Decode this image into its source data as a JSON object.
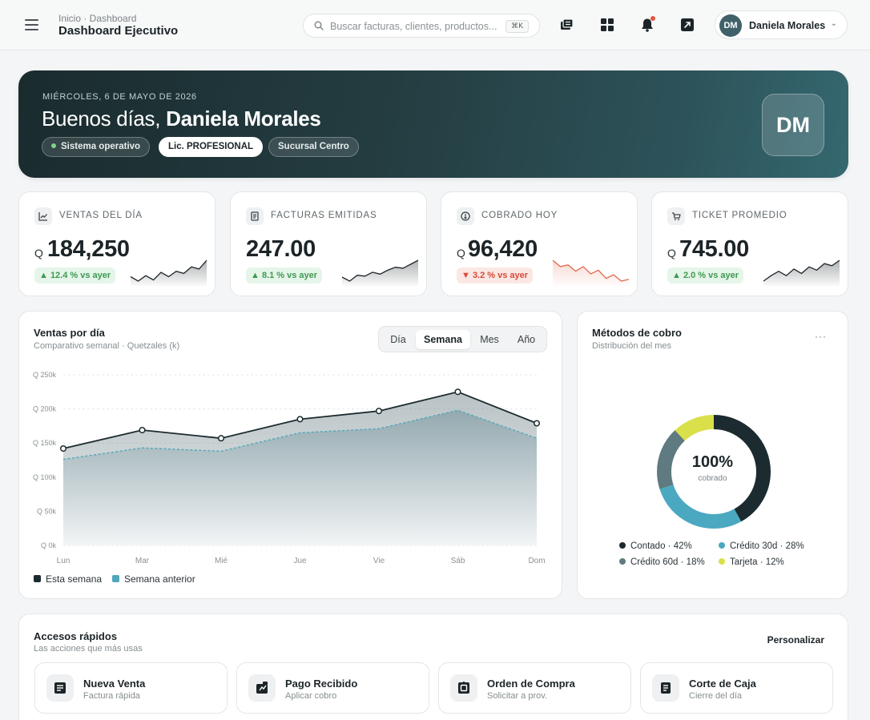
{
  "header": {
    "breadcrumb": "Inicio · Dashboard",
    "title": "Dashboard Ejecutivo",
    "search_placeholder": "Buscar facturas, clientes, productos...",
    "search_shortcut": "⌘K",
    "icons": [
      "inventory-icon",
      "apps-grid-icon",
      "bell-icon",
      "external-link-icon"
    ],
    "user": {
      "initials": "DM",
      "name": "Daniela Morales"
    }
  },
  "hero": {
    "date": "MIÉRCOLES, 6 DE MAYO DE 2026",
    "greeting": "Buenos días,",
    "name": "Daniela Morales",
    "status": "Sistema operativo",
    "license": "Lic. PROFESIONAL",
    "branch": "Sucursal Centro",
    "initials": "DM"
  },
  "kpis": [
    {
      "label": "VENTAS DEL DÍA",
      "currency": "Q",
      "value": "184,250",
      "change": "▲ 12.4 % vs ayer",
      "trend": "up",
      "icon": "chart-line-icon",
      "spark": [
        30,
        26,
        31,
        27,
        34,
        30,
        35,
        33,
        39,
        37,
        45
      ]
    },
    {
      "label": "FACTURAS EMITIDAS",
      "currency": "",
      "value": "247.00",
      "change": "▲ 8.1 % vs ayer",
      "trend": "up",
      "icon": "document-icon",
      "spark": [
        28,
        24,
        30,
        29,
        33,
        31,
        35,
        38,
        37,
        41,
        45
      ]
    },
    {
      "label": "COBRADO HOY",
      "currency": "Q",
      "value": "96,420",
      "change": "▼ 3.2 % vs ayer",
      "trend": "down",
      "icon": "coin-icon",
      "spark": [
        45,
        38,
        40,
        33,
        38,
        30,
        34,
        25,
        29,
        22,
        24
      ]
    },
    {
      "label": "TICKET PROMEDIO",
      "currency": "Q",
      "value": "745.00",
      "change": "▲ 2.0 % vs ayer",
      "trend": "up",
      "icon": "cart-icon",
      "spark": [
        26,
        31,
        35,
        31,
        37,
        33,
        39,
        36,
        42,
        40,
        45
      ]
    }
  ],
  "sales_chart": {
    "title": "Ventas por día",
    "subtitle": "Comparativo semanal · Quetzales (k)",
    "segments": [
      "Día",
      "Semana",
      "Mes",
      "Año"
    ],
    "active_segment": "Semana",
    "legend": [
      "Esta semana",
      "Semana anterior"
    ]
  },
  "chart_data": {
    "type": "area",
    "categories": [
      "Lun",
      "Mar",
      "Mié",
      "Jue",
      "Vie",
      "Sáb",
      "Dom"
    ],
    "yticks": [
      "Q 250k",
      "Q 200k",
      "Q 150k",
      "Q 100k",
      "Q 50k",
      "Q 0k"
    ],
    "ylim": [
      0,
      250
    ],
    "series": [
      {
        "name": "Esta semana",
        "values": [
          142,
          169,
          157,
          185,
          197,
          225,
          179
        ],
        "color": "#1c2b2f"
      },
      {
        "name": "Semana anterior",
        "values": [
          126,
          143,
          138,
          165,
          171,
          198,
          157
        ],
        "color": "#4fa7bd"
      }
    ]
  },
  "payments": {
    "title": "Métodos de cobro",
    "subtitle": "Distribución del mes",
    "center_value": "100%",
    "center_label": "cobrado",
    "slices": [
      {
        "label": "Contado · 42%",
        "value": 42,
        "color": "#1b2b2f"
      },
      {
        "label": "Crédito 30d · 28%",
        "value": 28,
        "color": "#4ba8c1"
      },
      {
        "label": "Crédito 60d · 18%",
        "value": 18,
        "color": "#5f7a80"
      },
      {
        "label": "Tarjeta · 12%",
        "value": 12,
        "color": "#d9e04a"
      }
    ]
  },
  "quick": {
    "title": "Accesos rápidos",
    "subtitle": "Las acciones que más usas",
    "customize": "Personalizar",
    "items": [
      {
        "title": "Nueva Venta",
        "sub": "Factura rápida",
        "icon": "receipt-icon"
      },
      {
        "title": "Pago Recibido",
        "sub": "Aplicar cobro",
        "icon": "payment-icon"
      },
      {
        "title": "Orden de Compra",
        "sub": "Solicitar a prov.",
        "icon": "purchase-order-icon"
      },
      {
        "title": "Corte de Caja",
        "sub": "Cierre del día",
        "icon": "cash-register-icon"
      }
    ]
  }
}
